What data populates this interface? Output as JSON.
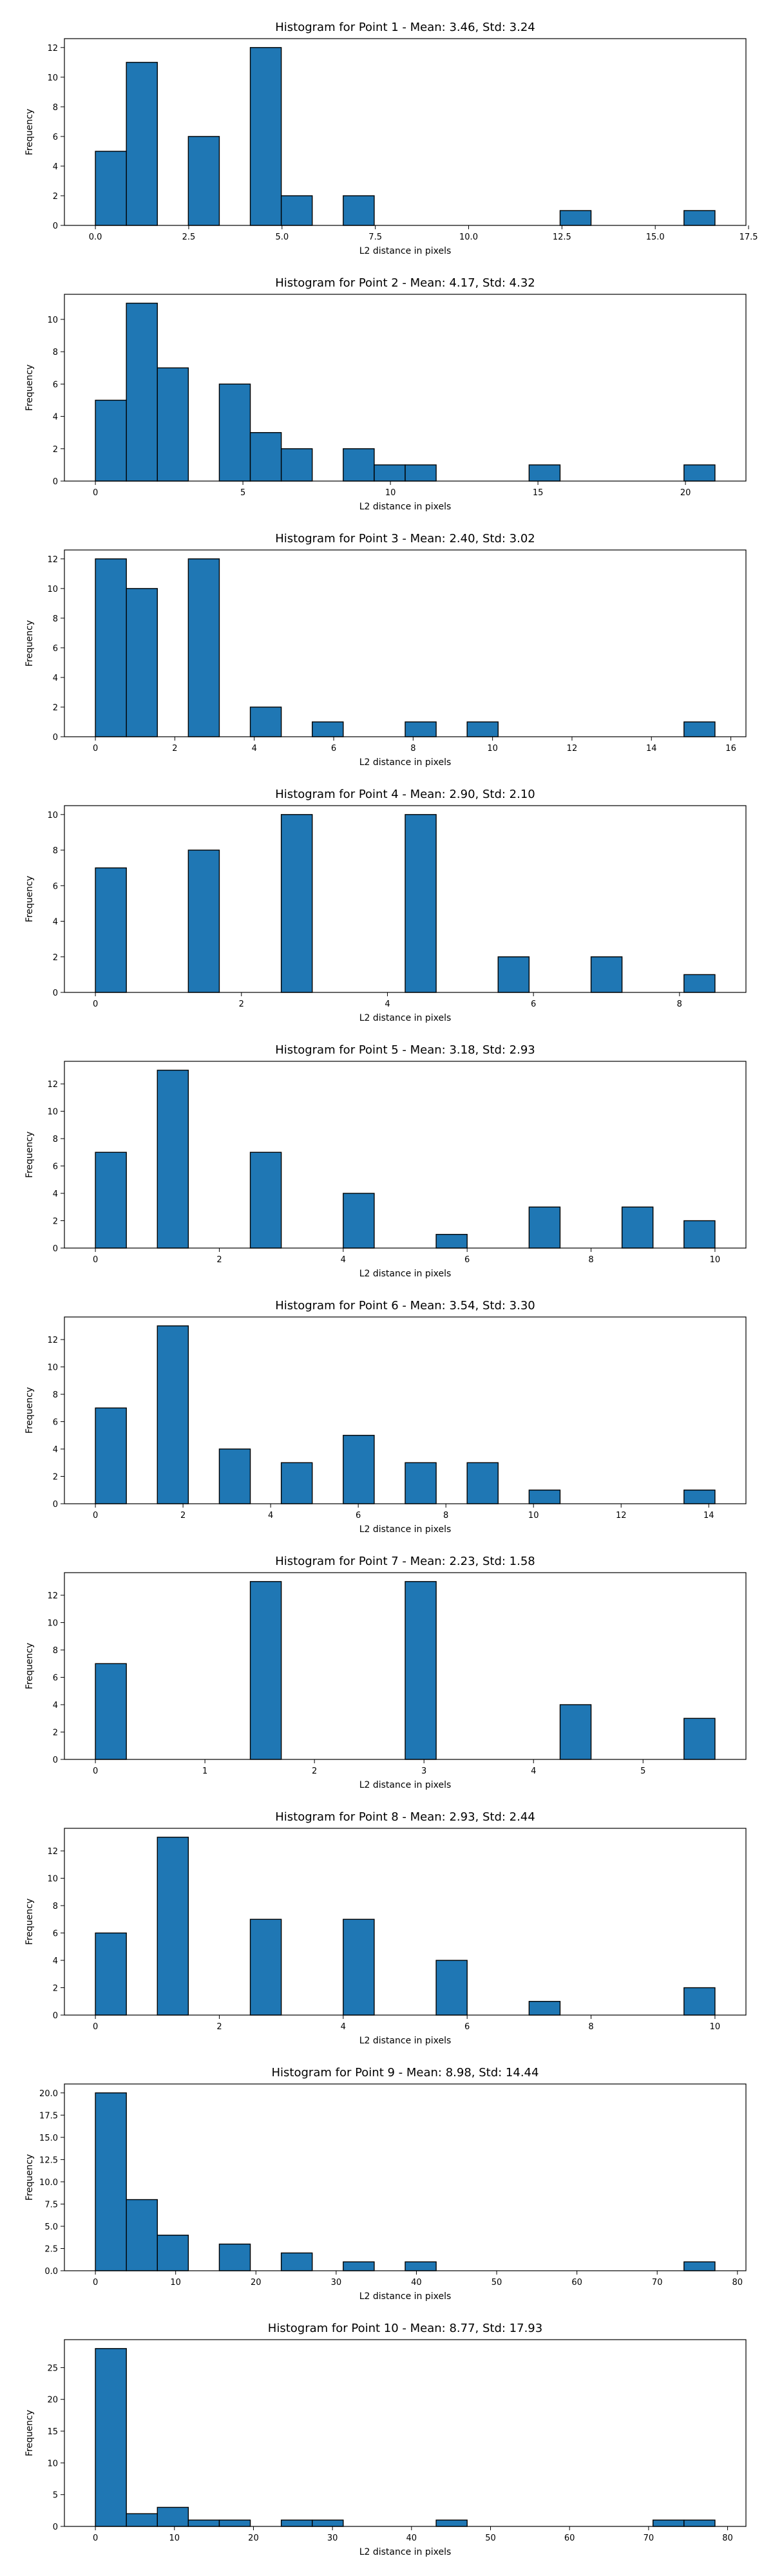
{
  "style": {
    "bar_color": "#1f77b4",
    "edge_color": "#000000"
  },
  "chart_data": [
    {
      "type": "bar",
      "title": "Histogram for Point 1 - Mean: 3.46, Std: 3.24",
      "xlabel": "L2 distance in pixels",
      "ylabel": "Frequency",
      "bin_width": 0.83,
      "bins": [
        {
          "x0": 0.0,
          "x1": 0.83,
          "count": 5
        },
        {
          "x0": 0.83,
          "x1": 1.66,
          "count": 11
        },
        {
          "x0": 2.49,
          "x1": 3.32,
          "count": 6
        },
        {
          "x0": 4.15,
          "x1": 4.98,
          "count": 12
        },
        {
          "x0": 4.98,
          "x1": 5.81,
          "count": 2
        },
        {
          "x0": 6.64,
          "x1": 7.47,
          "count": 2
        },
        {
          "x0": 12.45,
          "x1": 13.28,
          "count": 1
        },
        {
          "x0": 15.77,
          "x1": 16.6,
          "count": 1
        }
      ],
      "xlim": [
        -0.83,
        17.43
      ],
      "ylim": [
        0,
        12.6
      ],
      "xticks": [
        0,
        2.5,
        5,
        7.5,
        10,
        12.5,
        15,
        17.5
      ],
      "xtick_labels": [
        "0.0",
        "2.5",
        "5.0",
        "7.5",
        "10.0",
        "12.5",
        "15.0",
        "17.5"
      ],
      "yticks": [
        0,
        2,
        4,
        6,
        8,
        10,
        12
      ],
      "ytick_labels": [
        "0",
        "2",
        "4",
        "6",
        "8",
        "10",
        "12"
      ],
      "grid": false
    },
    {
      "type": "bar",
      "title": "Histogram for Point 2 - Mean: 4.17, Std: 4.32",
      "xlabel": "L2 distance in pixels",
      "ylabel": "Frequency",
      "bin_width": 1.05,
      "bins": [
        {
          "x0": 0.0,
          "x1": 1.05,
          "count": 5
        },
        {
          "x0": 1.05,
          "x1": 2.1,
          "count": 11
        },
        {
          "x0": 2.1,
          "x1": 3.15,
          "count": 7
        },
        {
          "x0": 4.2,
          "x1": 5.25,
          "count": 6
        },
        {
          "x0": 5.25,
          "x1": 6.3,
          "count": 3
        },
        {
          "x0": 6.3,
          "x1": 7.35,
          "count": 2
        },
        {
          "x0": 8.4,
          "x1": 9.45,
          "count": 2
        },
        {
          "x0": 9.45,
          "x1": 10.5,
          "count": 1
        },
        {
          "x0": 10.5,
          "x1": 11.55,
          "count": 1
        },
        {
          "x0": 14.7,
          "x1": 15.75,
          "count": 1
        },
        {
          "x0": 19.95,
          "x1": 21.0,
          "count": 1
        }
      ],
      "xlim": [
        -1.05,
        22.05
      ],
      "ylim": [
        0,
        11.55
      ],
      "xticks": [
        0,
        5,
        10,
        15,
        20
      ],
      "xtick_labels": [
        "0",
        "5",
        "10",
        "15",
        "20"
      ],
      "yticks": [
        0,
        2,
        4,
        6,
        8,
        10
      ],
      "ytick_labels": [
        "0",
        "2",
        "4",
        "6",
        "8",
        "10"
      ],
      "grid": false
    },
    {
      "type": "bar",
      "title": "Histogram for Point 3 - Mean: 2.40, Std: 3.02",
      "xlabel": "L2 distance in pixels",
      "ylabel": "Frequency",
      "bin_width": 0.78,
      "bins": [
        {
          "x0": 0.0,
          "x1": 0.78,
          "count": 12
        },
        {
          "x0": 0.78,
          "x1": 1.56,
          "count": 10
        },
        {
          "x0": 2.34,
          "x1": 3.12,
          "count": 12
        },
        {
          "x0": 3.9,
          "x1": 4.68,
          "count": 2
        },
        {
          "x0": 5.46,
          "x1": 6.24,
          "count": 1
        },
        {
          "x0": 7.8,
          "x1": 8.58,
          "count": 1
        },
        {
          "x0": 9.36,
          "x1": 10.14,
          "count": 1
        },
        {
          "x0": 14.82,
          "x1": 15.6,
          "count": 1
        }
      ],
      "xlim": [
        -0.78,
        16.38
      ],
      "ylim": [
        0,
        12.6
      ],
      "xticks": [
        0,
        2,
        4,
        6,
        8,
        10,
        12,
        14,
        16
      ],
      "xtick_labels": [
        "0",
        "2",
        "4",
        "6",
        "8",
        "10",
        "12",
        "14",
        "16"
      ],
      "yticks": [
        0,
        2,
        4,
        6,
        8,
        10,
        12
      ],
      "ytick_labels": [
        "0",
        "2",
        "4",
        "6",
        "8",
        "10",
        "12"
      ],
      "grid": false
    },
    {
      "type": "bar",
      "title": "Histogram for Point 4 - Mean: 2.90, Std: 2.10",
      "xlabel": "L2 distance in pixels",
      "ylabel": "Frequency",
      "bin_width": 0.4243,
      "bins": [
        {
          "x0": 0.0,
          "x1": 0.4243,
          "count": 7
        },
        {
          "x0": 1.2729,
          "x1": 1.6972,
          "count": 8
        },
        {
          "x0": 2.5458,
          "x1": 2.9701,
          "count": 10
        },
        {
          "x0": 4.243,
          "x1": 4.6673,
          "count": 10
        },
        {
          "x0": 5.5159,
          "x1": 5.9402,
          "count": 2
        },
        {
          "x0": 6.7888,
          "x1": 7.2131,
          "count": 2
        },
        {
          "x0": 8.0617,
          "x1": 8.486,
          "count": 1
        }
      ],
      "xlim": [
        -0.4243,
        8.9103
      ],
      "ylim": [
        0,
        10.5
      ],
      "xticks": [
        0,
        2,
        4,
        6,
        8
      ],
      "xtick_labels": [
        "0",
        "2",
        "4",
        "6",
        "8"
      ],
      "yticks": [
        0,
        2,
        4,
        6,
        8,
        10
      ],
      "ytick_labels": [
        "0",
        "2",
        "4",
        "6",
        "8",
        "10"
      ],
      "grid": false
    },
    {
      "type": "bar",
      "title": "Histogram for Point 5 - Mean: 3.18, Std: 2.93",
      "xlabel": "L2 distance in pixels",
      "ylabel": "Frequency",
      "bin_width": 0.5,
      "bins": [
        {
          "x0": 0.0,
          "x1": 0.5,
          "count": 7
        },
        {
          "x0": 1.0,
          "x1": 1.5,
          "count": 13
        },
        {
          "x0": 2.5,
          "x1": 3.0,
          "count": 7
        },
        {
          "x0": 4.0,
          "x1": 4.5,
          "count": 4
        },
        {
          "x0": 5.5,
          "x1": 6.0,
          "count": 1
        },
        {
          "x0": 7.0,
          "x1": 7.5,
          "count": 3
        },
        {
          "x0": 8.5,
          "x1": 9.0,
          "count": 3
        },
        {
          "x0": 9.5,
          "x1": 10.0,
          "count": 2
        }
      ],
      "xlim": [
        -0.5,
        10.5
      ],
      "ylim": [
        0,
        13.65
      ],
      "xticks": [
        0,
        2,
        4,
        6,
        8,
        10
      ],
      "xtick_labels": [
        "0",
        "2",
        "4",
        "6",
        "8",
        "10"
      ],
      "yticks": [
        0,
        2,
        4,
        6,
        8,
        10,
        12
      ],
      "ytick_labels": [
        "0",
        "2",
        "4",
        "6",
        "8",
        "10",
        "12"
      ],
      "grid": false
    },
    {
      "type": "bar",
      "title": "Histogram for Point 6 - Mean: 3.54, Std: 3.30",
      "xlabel": "L2 distance in pixels",
      "ylabel": "Frequency",
      "bin_width": 0.7071,
      "bins": [
        {
          "x0": 0.0,
          "x1": 0.7071,
          "count": 7
        },
        {
          "x0": 1.4142,
          "x1": 2.1213,
          "count": 13
        },
        {
          "x0": 2.8284,
          "x1": 3.5355,
          "count": 4
        },
        {
          "x0": 4.2426,
          "x1": 4.9497,
          "count": 3
        },
        {
          "x0": 5.6568,
          "x1": 6.3639,
          "count": 5
        },
        {
          "x0": 7.071,
          "x1": 7.7781,
          "count": 3
        },
        {
          "x0": 8.4852,
          "x1": 9.1923,
          "count": 3
        },
        {
          "x0": 9.8994,
          "x1": 10.6065,
          "count": 1
        },
        {
          "x0": 13.4349,
          "x1": 14.142,
          "count": 1
        }
      ],
      "xlim": [
        -0.7071,
        14.8491
      ],
      "ylim": [
        0,
        13.65
      ],
      "xticks": [
        0,
        2,
        4,
        6,
        8,
        10,
        12,
        14
      ],
      "xtick_labels": [
        "0",
        "2",
        "4",
        "6",
        "8",
        "10",
        "12",
        "14"
      ],
      "yticks": [
        0,
        2,
        4,
        6,
        8,
        10,
        12
      ],
      "ytick_labels": [
        "0",
        "2",
        "4",
        "6",
        "8",
        "10",
        "12"
      ],
      "grid": false
    },
    {
      "type": "bar",
      "title": "Histogram for Point 7 - Mean: 2.23, Std: 1.58",
      "xlabel": "L2 distance in pixels",
      "ylabel": "Frequency",
      "bin_width": 0.2828,
      "bins": [
        {
          "x0": 0.0,
          "x1": 0.2828,
          "count": 7
        },
        {
          "x0": 1.4142,
          "x1": 1.697,
          "count": 13
        },
        {
          "x0": 2.8284,
          "x1": 3.1112,
          "count": 13
        },
        {
          "x0": 4.2426,
          "x1": 4.5254,
          "count": 4
        },
        {
          "x0": 5.3738,
          "x1": 5.6566,
          "count": 3
        }
      ],
      "xlim": [
        -0.2828,
        5.9394
      ],
      "ylim": [
        0,
        13.65
      ],
      "xticks": [
        0,
        1,
        2,
        3,
        4,
        5
      ],
      "xtick_labels": [
        "0",
        "1",
        "2",
        "3",
        "4",
        "5"
      ],
      "yticks": [
        0,
        2,
        4,
        6,
        8,
        10,
        12
      ],
      "ytick_labels": [
        "0",
        "2",
        "4",
        "6",
        "8",
        "10",
        "12"
      ],
      "grid": false
    },
    {
      "type": "bar",
      "title": "Histogram for Point 8 - Mean: 2.93, Std: 2.44",
      "xlabel": "L2 distance in pixels",
      "ylabel": "Frequency",
      "bin_width": 0.5,
      "bins": [
        {
          "x0": 0.0,
          "x1": 0.5,
          "count": 6
        },
        {
          "x0": 1.0,
          "x1": 1.5,
          "count": 13
        },
        {
          "x0": 2.5,
          "x1": 3.0,
          "count": 7
        },
        {
          "x0": 4.0,
          "x1": 4.5,
          "count": 7
        },
        {
          "x0": 5.5,
          "x1": 6.0,
          "count": 4
        },
        {
          "x0": 7.0,
          "x1": 7.5,
          "count": 1
        },
        {
          "x0": 9.5,
          "x1": 10.0,
          "count": 2
        }
      ],
      "xlim": [
        -0.5,
        10.5
      ],
      "ylim": [
        0,
        13.65
      ],
      "xticks": [
        0,
        2,
        4,
        6,
        8,
        10
      ],
      "xtick_labels": [
        "0",
        "2",
        "4",
        "6",
        "8",
        "10"
      ],
      "yticks": [
        0,
        2,
        4,
        6,
        8,
        10,
        12
      ],
      "ytick_labels": [
        "0",
        "2",
        "4",
        "6",
        "8",
        "10",
        "12"
      ],
      "grid": false
    },
    {
      "type": "bar",
      "title": "Histogram for Point 9 - Mean: 8.98, Std: 14.44",
      "xlabel": "L2 distance in pixels",
      "ylabel": "Frequency",
      "bin_width": 3.86,
      "bins": [
        {
          "x0": 0.0,
          "x1": 3.86,
          "count": 20
        },
        {
          "x0": 3.86,
          "x1": 7.72,
          "count": 8
        },
        {
          "x0": 7.72,
          "x1": 11.58,
          "count": 4
        },
        {
          "x0": 15.44,
          "x1": 19.3,
          "count": 3
        },
        {
          "x0": 23.16,
          "x1": 27.02,
          "count": 2
        },
        {
          "x0": 30.88,
          "x1": 34.74,
          "count": 1
        },
        {
          "x0": 38.6,
          "x1": 42.46,
          "count": 1
        },
        {
          "x0": 73.34,
          "x1": 77.2,
          "count": 1
        }
      ],
      "xlim": [
        -3.86,
        81.06
      ],
      "ylim": [
        0,
        21.0
      ],
      "xticks": [
        0,
        10,
        20,
        30,
        40,
        50,
        60,
        70,
        80
      ],
      "xtick_labels": [
        "0",
        "10",
        "20",
        "30",
        "40",
        "50",
        "60",
        "70",
        "80"
      ],
      "yticks": [
        0,
        2.5,
        5,
        7.5,
        10,
        12.5,
        15,
        17.5,
        20
      ],
      "ytick_labels": [
        "0.0",
        "2.5",
        "5.0",
        "7.5",
        "10.0",
        "12.5",
        "15.0",
        "17.5",
        "20.0"
      ],
      "grid": false
    },
    {
      "type": "bar",
      "title": "Histogram for Point 10 - Mean: 8.77, Std: 17.93",
      "xlabel": "L2 distance in pixels",
      "ylabel": "Frequency",
      "bin_width": 3.92,
      "bins": [
        {
          "x0": 0.0,
          "x1": 3.92,
          "count": 28
        },
        {
          "x0": 3.92,
          "x1": 7.84,
          "count": 2
        },
        {
          "x0": 7.84,
          "x1": 11.76,
          "count": 3
        },
        {
          "x0": 11.76,
          "x1": 15.68,
          "count": 1
        },
        {
          "x0": 15.68,
          "x1": 19.6,
          "count": 1
        },
        {
          "x0": 23.52,
          "x1": 27.44,
          "count": 1
        },
        {
          "x0": 27.44,
          "x1": 31.36,
          "count": 1
        },
        {
          "x0": 43.12,
          "x1": 47.04,
          "count": 1
        },
        {
          "x0": 70.56,
          "x1": 74.48,
          "count": 1
        },
        {
          "x0": 74.48,
          "x1": 78.4,
          "count": 1
        }
      ],
      "xlim": [
        -3.92,
        82.32
      ],
      "ylim": [
        0,
        29.4
      ],
      "xticks": [
        0,
        10,
        20,
        30,
        40,
        50,
        60,
        70,
        80
      ],
      "xtick_labels": [
        "0",
        "10",
        "20",
        "30",
        "40",
        "50",
        "60",
        "70",
        "80"
      ],
      "yticks": [
        0,
        5,
        10,
        15,
        20,
        25
      ],
      "ytick_labels": [
        "0",
        "5",
        "10",
        "15",
        "20",
        "25"
      ],
      "grid": false
    }
  ]
}
